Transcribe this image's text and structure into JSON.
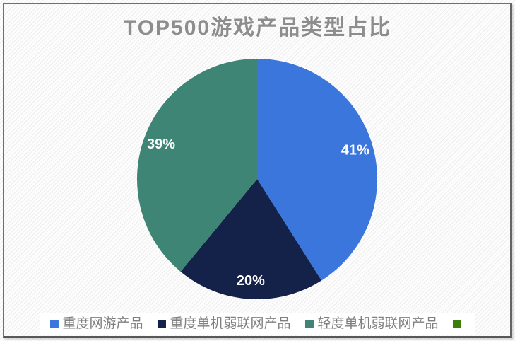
{
  "chart_data": {
    "type": "pie",
    "title": "TOP500游戏产品类型占比",
    "unit": "%",
    "start_angle": "top",
    "direction": "clockwise",
    "legend_position": "bottom",
    "labels_shown": [
      "41%",
      "20%",
      "39%"
    ],
    "series": [
      {
        "name": "重度网游产品",
        "value": 41,
        "color": "#3A76DC"
      },
      {
        "name": "重度单机弱联网产品",
        "value": 20,
        "color": "#142149"
      },
      {
        "name": "轻度单机弱联网产品",
        "value": 39,
        "color": "#3E8575"
      },
      {
        "name": "",
        "value": 0,
        "color": "#3D7D0C"
      }
    ]
  },
  "styles": {
    "title_color": "#8D8D8D",
    "legend_text_color": "#7F7F7F",
    "slice_label_color": "#FFFFFF",
    "border_color": "#6F6F6F",
    "background_color": "#FFFFFF",
    "stripe_color": "#EDEDED"
  }
}
